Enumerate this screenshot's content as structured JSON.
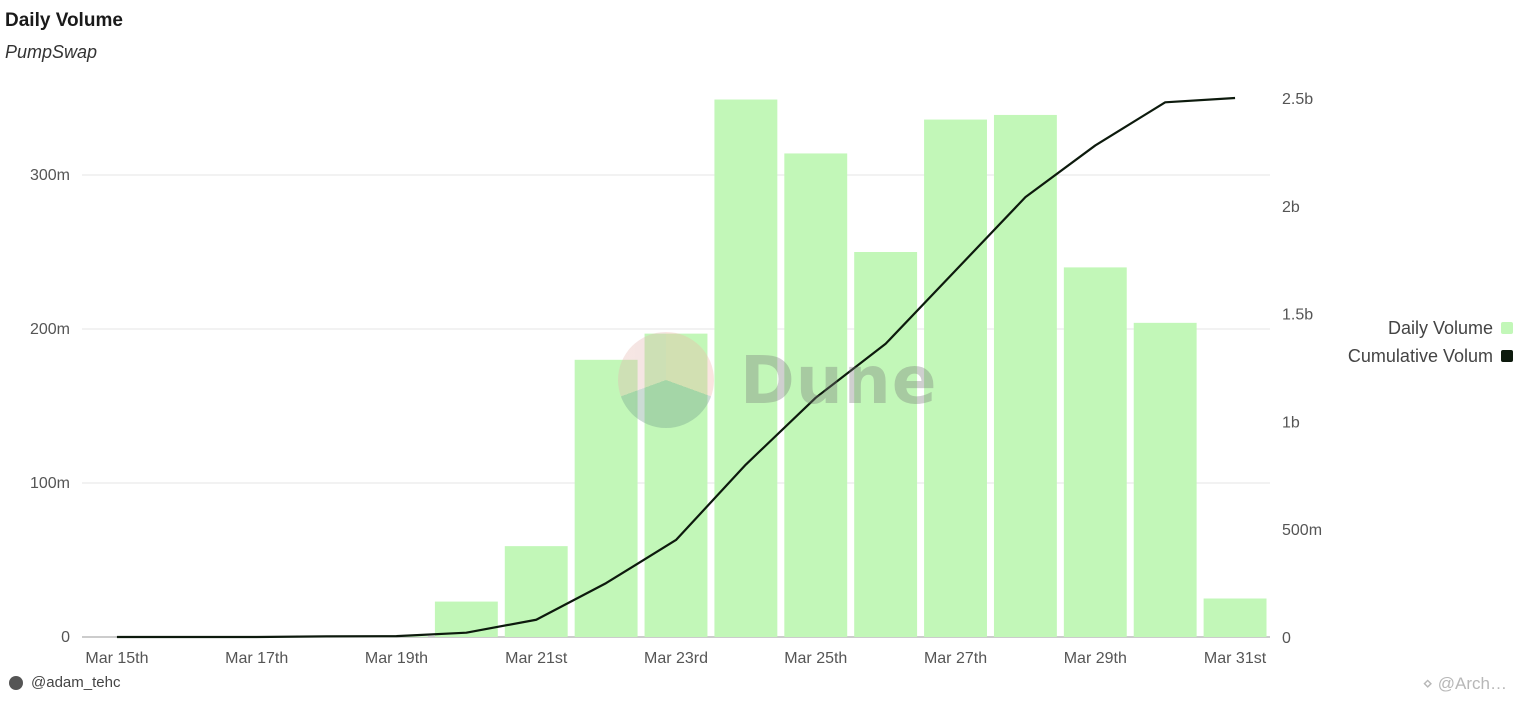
{
  "header": {
    "title": "Daily Volume",
    "subtitle": "PumpSwap"
  },
  "chart_data": {
    "type": "bar",
    "categories": [
      "Mar 15th",
      "Mar 16th",
      "Mar 17th",
      "Mar 18th",
      "Mar 19th",
      "Mar 20th",
      "Mar 21st",
      "Mar 22nd",
      "Mar 23rd",
      "Mar 24th",
      "Mar 25th",
      "Mar 26th",
      "Mar 27th",
      "Mar 28th",
      "Mar 29th",
      "Mar 30th",
      "Mar 31st"
    ],
    "x_tick_labels": [
      "Mar 15th",
      "Mar 17th",
      "Mar 19th",
      "Mar 21st",
      "Mar 23rd",
      "Mar 25th",
      "Mar 27th",
      "Mar 29th",
      "Mar 31st"
    ],
    "series": [
      {
        "name": "Daily Volume",
        "type": "bar",
        "axis": "left",
        "color": "#c2f7b8",
        "values": [
          0,
          0,
          0,
          0.5,
          0.5,
          23,
          59,
          180,
          197,
          349,
          314,
          250,
          336,
          339,
          240,
          204,
          25
        ]
      },
      {
        "name": "Cumulative Volum",
        "type": "line",
        "axis": "right",
        "color": "#0d1a0d",
        "values": [
          0,
          0,
          0,
          0.003,
          0.004,
          0.02,
          0.08,
          0.25,
          0.45,
          0.8,
          1.11,
          1.36,
          1.7,
          2.04,
          2.28,
          2.48,
          2.5
        ]
      }
    ],
    "y_left": {
      "lim": [
        0,
        350
      ],
      "ticks": [
        0,
        100,
        200,
        300
      ],
      "tick_labels": [
        "0",
        "100m",
        "200m",
        "300m"
      ],
      "unit": "millions"
    },
    "y_right": {
      "lim": [
        0,
        2.5
      ],
      "ticks": [
        0,
        0.5,
        1,
        1.5,
        2,
        2.5
      ],
      "tick_labels": [
        "0",
        "500m",
        "1b",
        "1.5b",
        "2b",
        "2.5b"
      ],
      "unit": "billions"
    },
    "grid": true,
    "legend_position": "right"
  },
  "legend": {
    "items": [
      {
        "label": "Daily Volume",
        "color": "#c2f7b8"
      },
      {
        "label": "Cumulative Volum",
        "color": "#0d1a0d"
      }
    ]
  },
  "footer": {
    "author": "@adam_tehc",
    "corner_text": "⋄ @Arch…",
    "watermark": "Dune"
  }
}
